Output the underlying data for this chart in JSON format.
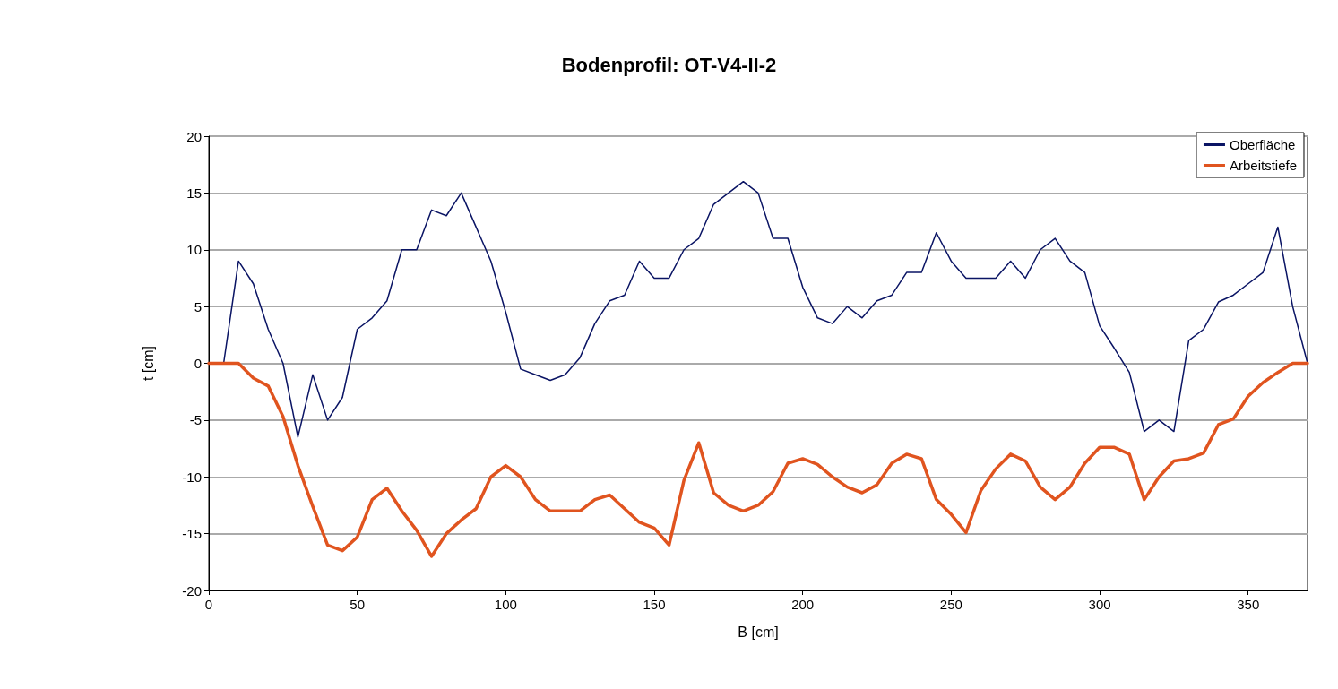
{
  "chart_data": {
    "type": "line",
    "title": "Bodenprofil: OT-V4-II-2",
    "xlabel": "B [cm]",
    "ylabel": "t [cm]",
    "x": [
      0,
      5,
      10,
      15,
      20,
      25,
      30,
      35,
      40,
      45,
      50,
      55,
      60,
      65,
      70,
      75,
      80,
      85,
      90,
      95,
      100,
      105,
      110,
      115,
      120,
      125,
      130,
      135,
      140,
      145,
      150,
      155,
      160,
      165,
      170,
      175,
      180,
      185,
      190,
      195,
      200,
      205,
      210,
      215,
      220,
      225,
      230,
      235,
      240,
      245,
      250,
      255,
      260,
      265,
      270,
      275,
      280,
      285,
      290,
      295,
      300,
      305,
      310,
      315,
      320,
      325,
      330,
      335,
      340,
      345,
      350,
      355,
      360,
      365,
      370
    ],
    "series": [
      {
        "name": "Oberfläche",
        "color": "#0a1464",
        "values": [
          0,
          0,
          9,
          7,
          3,
          0,
          -6.5,
          -1,
          -5,
          -3,
          3,
          4,
          5.5,
          10,
          10,
          13.5,
          13,
          15,
          12,
          9,
          4.5,
          -0.5,
          -1,
          -1.5,
          -1,
          0.5,
          3.5,
          5.5,
          6,
          9,
          7.5,
          7.5,
          10,
          11,
          14,
          15,
          16,
          15,
          11,
          11,
          6.7,
          4,
          3.5,
          5,
          4,
          5.5,
          6,
          8,
          8,
          11.5,
          9,
          7.5,
          7.5,
          7.5,
          9,
          7.5,
          10,
          11,
          9,
          8,
          3.3,
          1.3,
          -0.8,
          -6,
          -5,
          -6,
          2,
          3,
          5.4,
          6,
          7,
          8,
          12,
          5,
          0
        ]
      },
      {
        "name": "Arbeitstiefe",
        "color": "#e0541f",
        "values": [
          0,
          0,
          0,
          -1.3,
          -2,
          -4.7,
          -9,
          -12.6,
          -16,
          -16.5,
          -15.3,
          -12,
          -11,
          -13,
          -14.7,
          -17,
          -15,
          -13.8,
          -12.8,
          -10,
          -9,
          -10,
          -12,
          -13,
          -13,
          -13,
          -12,
          -11.6,
          -12.8,
          -14,
          -14.5,
          -16,
          -10.3,
          -7,
          -11.4,
          -12.5,
          -13,
          -12.5,
          -11.3,
          -8.8,
          -8.4,
          -8.9,
          -10,
          -10.9,
          -11.4,
          -10.7,
          -8.8,
          -8,
          -8.4,
          -12,
          -13.3,
          -14.9,
          -11.2,
          -9.3,
          -8,
          -8.6,
          -10.9,
          -12,
          -10.9,
          -8.8,
          -7.4,
          -7.4,
          -8,
          -12,
          -10,
          -8.6,
          -8.4,
          -7.9,
          -5.4,
          -4.9,
          -2.9,
          -1.7,
          -0.8,
          0,
          0
        ]
      }
    ],
    "xlim": [
      0,
      370
    ],
    "xticks": [
      0,
      50,
      100,
      150,
      200,
      250,
      300,
      350
    ],
    "ylim": [
      -20,
      20
    ],
    "yticks": [
      -20,
      -15,
      -10,
      -5,
      0,
      5,
      10,
      15,
      20
    ],
    "grid": "y",
    "legend": "top right",
    "marker": "none",
    "line_style": "solid"
  }
}
